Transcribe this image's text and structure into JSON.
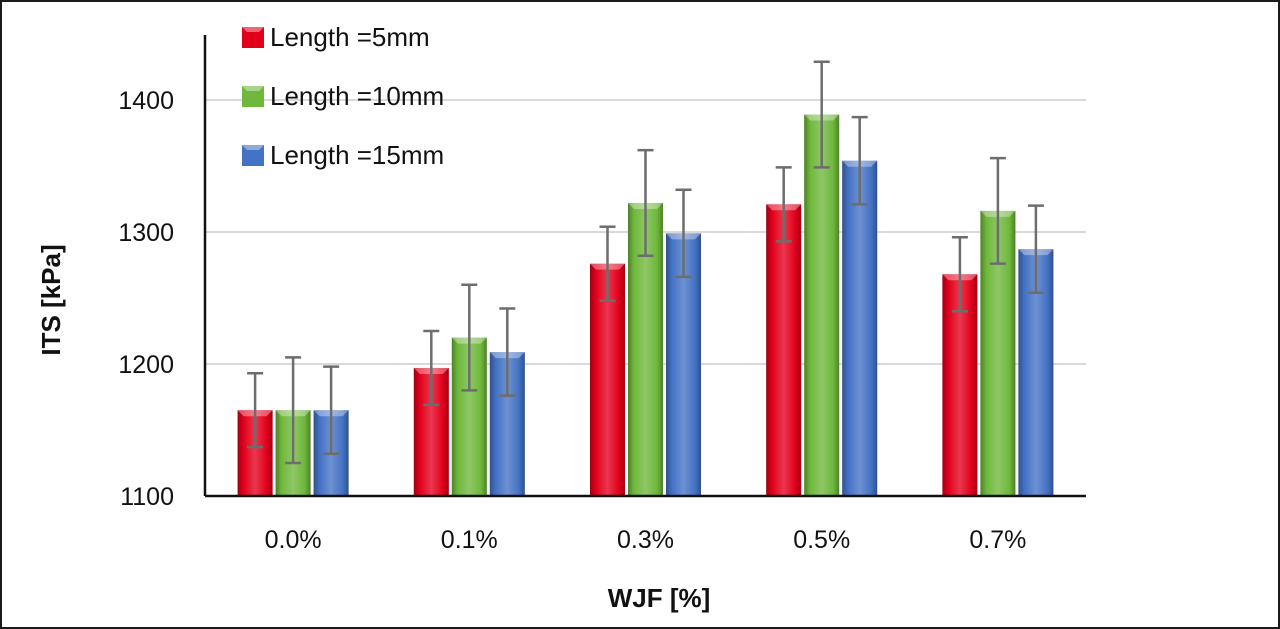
{
  "chart_data": {
    "type": "bar",
    "title": "",
    "xlabel": "WJF [%]",
    "ylabel": "ITS [kPa]",
    "ylim": [
      1100,
      1450
    ],
    "yticks": [
      1100,
      1200,
      1300,
      1400
    ],
    "grid": true,
    "legend_position": "top-left",
    "categories": [
      "0.0%",
      "0.1%",
      "0.3%",
      "0.5%",
      "0.7%"
    ],
    "series": [
      {
        "name": "Length =5mm",
        "color": "#e3001b",
        "values": [
          1165,
          1197,
          1276,
          1321,
          1268
        ],
        "error": [
          28,
          28,
          28,
          28,
          28
        ]
      },
      {
        "name": "Length =10mm",
        "color": "#6fb83b",
        "values": [
          1165,
          1220,
          1322,
          1389,
          1316
        ],
        "error": [
          40,
          40,
          40,
          40,
          40
        ]
      },
      {
        "name": "Length =15mm",
        "color": "#4472c4",
        "values": [
          1165,
          1209,
          1299,
          1354,
          1287
        ],
        "error": [
          33,
          33,
          33,
          33,
          33
        ]
      }
    ]
  }
}
